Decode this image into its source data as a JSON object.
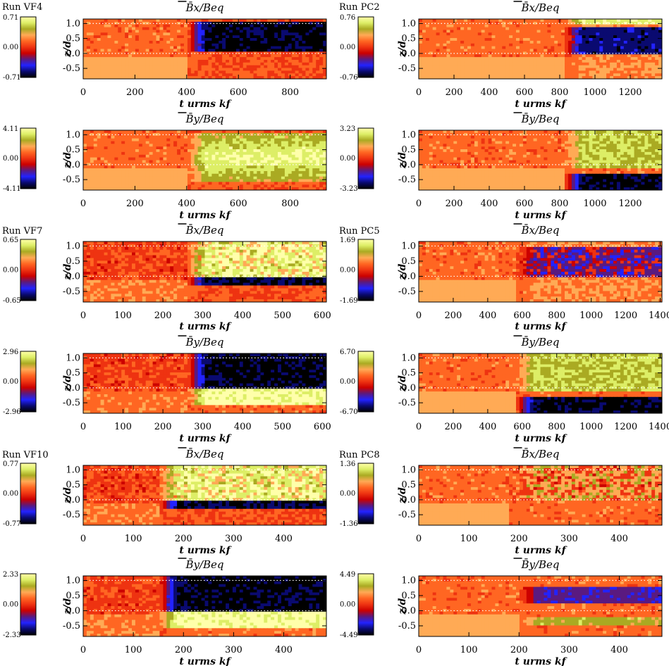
{
  "colorscale": [
    "#000000",
    "#0a0a70",
    "#2222ff",
    "#5a1a80",
    "#cc0000",
    "#ee3311",
    "#ff6622",
    "#ffaa55",
    "#aaaa22",
    "#ddee66",
    "#ffffaa"
  ],
  "chart_data": [
    {
      "type": "heatmap",
      "run_label": "Run  VF4",
      "title": "B̄x/Beq",
      "xlabel": "t urms kf",
      "ylabel": "z/d",
      "cbar": [
        "0.71",
        "0.00",
        "-0.71"
      ],
      "xlim": [
        0,
        940
      ],
      "xticks": [
        0,
        200,
        400,
        600,
        800
      ],
      "ylim": [
        -0.85,
        1.15
      ],
      "yticks": [
        1.0,
        0.5,
        0.0,
        -0.5
      ],
      "onset": 400,
      "pattern": "upper-negative"
    },
    {
      "type": "heatmap",
      "run_label": "Run  PC2",
      "title": "B̄x/Beq",
      "xlabel": "t urms kf",
      "ylabel": "z/d",
      "cbar": [
        "0.76",
        "0.00",
        "-0.76"
      ],
      "xlim": [
        0,
        1380
      ],
      "xticks": [
        0,
        200,
        400,
        600,
        800,
        1000,
        1200
      ],
      "ylim": [
        -0.85,
        1.15
      ],
      "yticks": [
        1.0,
        0.5,
        0.0,
        -0.5
      ],
      "onset": 820,
      "pattern": "pc-bx-early"
    },
    {
      "type": "heatmap",
      "run_label": "",
      "title": "B̄y/Beq",
      "xlabel": "t urms kf",
      "ylabel": "z/d",
      "cbar": [
        "4.11",
        "0.00",
        "-4.11"
      ],
      "xlim": [
        0,
        940
      ],
      "xticks": [
        0,
        200,
        400,
        600,
        800
      ],
      "ylim": [
        -0.85,
        1.15
      ],
      "yticks": [
        1.0,
        0.5,
        0.0,
        -0.5
      ],
      "onset": 400,
      "pattern": "blob-positive"
    },
    {
      "type": "heatmap",
      "run_label": "",
      "title": "B̄y/Beq",
      "xlabel": "t urms kf",
      "ylabel": "z/d",
      "cbar": [
        "3.23",
        "0.00",
        "-3.23"
      ],
      "xlim": [
        0,
        1380
      ],
      "xticks": [
        0,
        200,
        400,
        600,
        800,
        1000,
        1200
      ],
      "ylim": [
        -0.85,
        1.15
      ],
      "yticks": [
        1.0,
        0.5,
        0.0,
        -0.5
      ],
      "onset": 820,
      "pattern": "pc-by"
    },
    {
      "type": "heatmap",
      "run_label": "Run  VF7",
      "title": "B̄x/Beq",
      "xlabel": "t urms kf",
      "ylabel": "z/d",
      "cbar": [
        "0.65",
        "0.00",
        "-0.65"
      ],
      "xlim": [
        0,
        610
      ],
      "xticks": [
        0,
        100,
        200,
        300,
        400,
        500,
        600
      ],
      "ylim": [
        -0.85,
        1.15
      ],
      "yticks": [
        1.0,
        0.5,
        0.0,
        -0.5
      ],
      "onset": 260,
      "pattern": "vf-bx"
    },
    {
      "type": "heatmap",
      "run_label": "Run  PC5",
      "title": "B̄x/Beq",
      "xlabel": "t urms kf",
      "ylabel": "z/d",
      "cbar": [
        "1.69",
        "0.00",
        "-1.69"
      ],
      "xlim": [
        0,
        1410
      ],
      "xticks": [
        0,
        200,
        400,
        600,
        800,
        1000,
        1200,
        1400
      ],
      "ylim": [
        -0.85,
        1.15
      ],
      "yticks": [
        1.0,
        0.5,
        0.0,
        -0.5
      ],
      "onset": 560,
      "pattern": "pc-bx"
    },
    {
      "type": "heatmap",
      "run_label": "",
      "title": "B̄y/Beq",
      "xlabel": "t urms kf",
      "ylabel": "z/d",
      "cbar": [
        "2.96",
        "0.00",
        "-2.96"
      ],
      "xlim": [
        0,
        610
      ],
      "xticks": [
        0,
        100,
        200,
        300,
        400,
        500,
        600
      ],
      "ylim": [
        -0.85,
        1.15
      ],
      "yticks": [
        1.0,
        0.5,
        0.0,
        -0.5
      ],
      "onset": 260,
      "pattern": "vf-by"
    },
    {
      "type": "heatmap",
      "run_label": "",
      "title": "B̄y/Beq",
      "xlabel": "t urms kf",
      "ylabel": "z/d",
      "cbar": [
        "6.70",
        "0.00",
        "-6.70"
      ],
      "xlim": [
        0,
        1410
      ],
      "xticks": [
        0,
        200,
        400,
        600,
        800,
        1000,
        1200,
        1400
      ],
      "ylim": [
        -0.85,
        1.15
      ],
      "yticks": [
        1.0,
        0.5,
        0.0,
        -0.5
      ],
      "onset": 560,
      "pattern": "pc-by"
    },
    {
      "type": "heatmap",
      "run_label": "Run  VF10",
      "title": "B̄x/Beq",
      "xlabel": "t urms kf",
      "ylabel": "z/d",
      "cbar": [
        "0.77",
        "0.00",
        "-0.77"
      ],
      "xlim": [
        0,
        485
      ],
      "xticks": [
        0,
        100,
        200,
        300,
        400
      ],
      "ylim": [
        -0.85,
        1.15
      ],
      "yticks": [
        1.0,
        0.5,
        0.0,
        -0.5
      ],
      "onset": 150,
      "pattern": "vf-bx"
    },
    {
      "type": "heatmap",
      "run_label": "Run  PC8",
      "title": "B̄x/Beq",
      "xlabel": "t urms kf",
      "ylabel": "z/d",
      "cbar": [
        "1.36",
        "0.00",
        "-1.36"
      ],
      "xlim": [
        0,
        485
      ],
      "xticks": [
        0,
        100,
        200,
        300,
        400
      ],
      "ylim": [
        -0.85,
        1.15
      ],
      "yticks": [
        1.0,
        0.5,
        0.0,
        -0.5
      ],
      "onset": 180,
      "pattern": "pc-bx-weak"
    },
    {
      "type": "heatmap",
      "run_label": "",
      "title": "B̄y/Beq",
      "xlabel": "t urms kf",
      "ylabel": "z/d",
      "cbar": [
        "2.33",
        "0.00",
        "-2.33"
      ],
      "xlim": [
        0,
        485
      ],
      "xticks": [
        0,
        100,
        200,
        300,
        400
      ],
      "ylim": [
        -0.85,
        1.15
      ],
      "yticks": [
        1.0,
        0.5,
        0.0,
        -0.5
      ],
      "onset": 150,
      "pattern": "vf-by"
    },
    {
      "type": "heatmap",
      "run_label": "",
      "title": "B̄y/Beq",
      "xlabel": "t urms kf",
      "ylabel": "z/d",
      "cbar": [
        "4.49",
        "0.00",
        "-4.49"
      ],
      "xlim": [
        0,
        485
      ],
      "xticks": [
        0,
        100,
        200,
        300,
        400
      ],
      "ylim": [
        -0.85,
        1.15
      ],
      "yticks": [
        1.0,
        0.5,
        0.0,
        -0.5
      ],
      "onset": 200,
      "pattern": "pc-by-weak"
    }
  ]
}
